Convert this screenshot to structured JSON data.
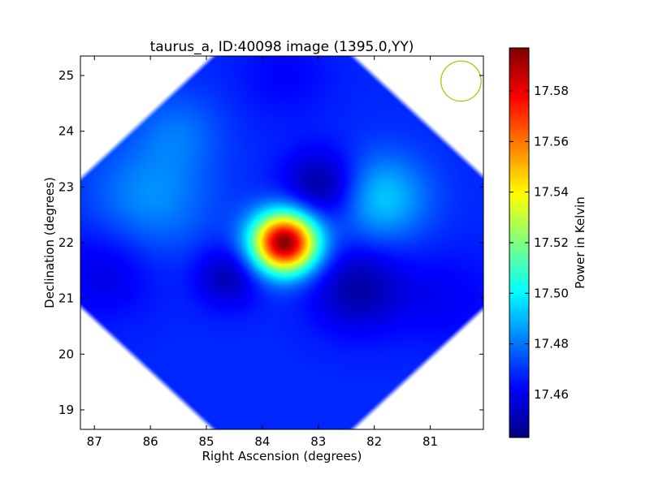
{
  "chart_data": {
    "type": "heatmap",
    "title": "taurus_a, ID:40098 image (1395.0,YY)",
    "xlabel": "Right Ascension (degrees)",
    "ylabel": "Declination (degrees)",
    "colorbar_label": "Power in Kelvin",
    "colormap": "jet",
    "xlim": [
      87.25,
      80.05
    ],
    "ylim": [
      18.65,
      25.35
    ],
    "x_ticks": [
      87,
      86,
      85,
      84,
      83,
      82,
      81
    ],
    "x_tick_labels": [
      "87",
      "86",
      "85",
      "84",
      "83",
      "82",
      "81"
    ],
    "y_ticks": [
      19,
      20,
      21,
      22,
      23,
      24,
      25
    ],
    "y_tick_labels": [
      "19",
      "20",
      "21",
      "22",
      "23",
      "24",
      "25"
    ],
    "color_range": [
      17.443,
      17.597
    ],
    "colorbar_ticks": [
      17.46,
      17.48,
      17.5,
      17.52,
      17.54,
      17.56,
      17.58
    ],
    "colorbar_tick_labels": [
      "17.46",
      "17.48",
      "17.50",
      "17.52",
      "17.54",
      "17.56",
      "17.58"
    ],
    "background_level": 17.468,
    "map_center": {
      "ra": 83.63,
      "dec": 22.0
    },
    "map_half_width_deg": 4.5,
    "features": [
      {
        "ra": 83.6,
        "dec": 22.0,
        "value": 17.597,
        "sigma_deg": 0.38,
        "kind": "peak"
      },
      {
        "ra": 81.9,
        "dec": 22.8,
        "value": 17.494,
        "sigma_deg": 0.55,
        "kind": "bright"
      },
      {
        "ra": 86.0,
        "dec": 22.8,
        "value": 17.484,
        "sigma_deg": 0.7,
        "kind": "bright"
      },
      {
        "ra": 85.5,
        "dec": 24.0,
        "value": 17.478,
        "sigma_deg": 0.5,
        "kind": "bright"
      },
      {
        "ra": 82.9,
        "dec": 23.0,
        "value": 17.444,
        "sigma_deg": 0.45,
        "kind": "dip"
      },
      {
        "ra": 82.3,
        "dec": 21.2,
        "value": 17.449,
        "sigma_deg": 0.55,
        "kind": "dip"
      },
      {
        "ra": 84.6,
        "dec": 21.4,
        "value": 17.45,
        "sigma_deg": 0.38,
        "kind": "dip"
      },
      {
        "ra": 86.8,
        "dec": 21.5,
        "value": 17.458,
        "sigma_deg": 0.6,
        "kind": "dip"
      },
      {
        "ra": 80.7,
        "dec": 21.0,
        "value": 17.461,
        "sigma_deg": 0.6,
        "kind": "dip"
      },
      {
        "ra": 83.6,
        "dec": 25.0,
        "value": 17.462,
        "sigma_deg": 0.55,
        "kind": "dip"
      }
    ],
    "beam_marker": {
      "ra": 80.45,
      "dec": 24.9,
      "radius_deg": 0.36,
      "color": "#b8b800"
    },
    "grid": false,
    "legend": "none"
  }
}
